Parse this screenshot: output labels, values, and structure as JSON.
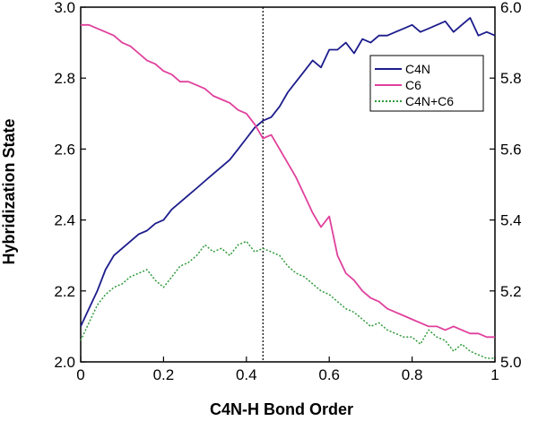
{
  "chart_data": {
    "type": "line",
    "title": "",
    "xlabel": "C4N-H Bond Order",
    "ylabel": "Hybridization State",
    "xlim": [
      0,
      1
    ],
    "ylim": [
      2.0,
      3.0
    ],
    "y2lim": [
      5.0,
      6.0
    ],
    "xticks": [
      "0",
      "0.2",
      "0.4",
      "0.6",
      "0.8",
      "1"
    ],
    "yticks": [
      "2.0",
      "2.2",
      "2.4",
      "2.6",
      "2.8",
      "3.0"
    ],
    "y2ticks": [
      "5.0",
      "5.2",
      "5.4",
      "5.6",
      "5.8",
      "6.0"
    ],
    "reference_line_x": 0.44,
    "grid": false,
    "legend_position": "top-right",
    "series": [
      {
        "name": "C4N",
        "axis": "left",
        "color": "#1c1c8c",
        "style": "solid",
        "x": [
          0.0,
          0.02,
          0.04,
          0.06,
          0.08,
          0.1,
          0.12,
          0.14,
          0.16,
          0.18,
          0.2,
          0.22,
          0.24,
          0.26,
          0.28,
          0.3,
          0.32,
          0.34,
          0.36,
          0.38,
          0.4,
          0.42,
          0.44,
          0.46,
          0.48,
          0.5,
          0.52,
          0.54,
          0.56,
          0.58,
          0.6,
          0.62,
          0.64,
          0.66,
          0.68,
          0.7,
          0.72,
          0.74,
          0.76,
          0.78,
          0.8,
          0.82,
          0.84,
          0.86,
          0.88,
          0.9,
          0.92,
          0.94,
          0.96,
          0.98,
          1.0
        ],
        "y": [
          2.1,
          2.15,
          2.2,
          2.26,
          2.3,
          2.32,
          2.34,
          2.36,
          2.37,
          2.39,
          2.4,
          2.43,
          2.45,
          2.47,
          2.49,
          2.51,
          2.53,
          2.55,
          2.57,
          2.6,
          2.63,
          2.66,
          2.68,
          2.69,
          2.72,
          2.76,
          2.79,
          2.82,
          2.85,
          2.83,
          2.88,
          2.88,
          2.9,
          2.87,
          2.91,
          2.9,
          2.92,
          2.92,
          2.93,
          2.94,
          2.95,
          2.93,
          2.94,
          2.95,
          2.96,
          2.93,
          2.95,
          2.97,
          2.92,
          2.93,
          2.92
        ]
      },
      {
        "name": "C6",
        "axis": "left",
        "color": "#e0409c",
        "style": "solid",
        "x": [
          0.0,
          0.02,
          0.04,
          0.06,
          0.08,
          0.1,
          0.12,
          0.14,
          0.16,
          0.18,
          0.2,
          0.22,
          0.24,
          0.26,
          0.28,
          0.3,
          0.32,
          0.34,
          0.36,
          0.38,
          0.4,
          0.42,
          0.44,
          0.46,
          0.48,
          0.5,
          0.52,
          0.54,
          0.56,
          0.58,
          0.6,
          0.62,
          0.64,
          0.66,
          0.68,
          0.7,
          0.72,
          0.74,
          0.76,
          0.78,
          0.8,
          0.82,
          0.84,
          0.86,
          0.88,
          0.9,
          0.92,
          0.94,
          0.96,
          0.98,
          1.0
        ],
        "y": [
          2.95,
          2.95,
          2.94,
          2.93,
          2.92,
          2.9,
          2.89,
          2.87,
          2.85,
          2.84,
          2.82,
          2.81,
          2.79,
          2.79,
          2.78,
          2.77,
          2.75,
          2.74,
          2.73,
          2.71,
          2.7,
          2.67,
          2.63,
          2.64,
          2.6,
          2.56,
          2.52,
          2.47,
          2.42,
          2.38,
          2.41,
          2.3,
          2.25,
          2.23,
          2.2,
          2.18,
          2.17,
          2.15,
          2.14,
          2.13,
          2.12,
          2.11,
          2.1,
          2.1,
          2.09,
          2.1,
          2.09,
          2.08,
          2.08,
          2.07,
          2.07
        ]
      },
      {
        "name": "C4N+C6",
        "axis": "right",
        "color": "#2f9a3a",
        "style": "dotted",
        "x": [
          0.0,
          0.02,
          0.04,
          0.06,
          0.08,
          0.1,
          0.12,
          0.14,
          0.16,
          0.18,
          0.2,
          0.22,
          0.24,
          0.26,
          0.28,
          0.3,
          0.32,
          0.34,
          0.36,
          0.38,
          0.4,
          0.42,
          0.44,
          0.46,
          0.48,
          0.5,
          0.52,
          0.54,
          0.56,
          0.58,
          0.6,
          0.62,
          0.64,
          0.66,
          0.68,
          0.7,
          0.72,
          0.74,
          0.76,
          0.78,
          0.8,
          0.82,
          0.84,
          0.86,
          0.88,
          0.9,
          0.92,
          0.94,
          0.96,
          0.98,
          1.0
        ],
        "y": [
          5.06,
          5.11,
          5.16,
          5.19,
          5.21,
          5.22,
          5.24,
          5.25,
          5.26,
          5.23,
          5.21,
          5.24,
          5.27,
          5.28,
          5.3,
          5.33,
          5.31,
          5.32,
          5.3,
          5.33,
          5.34,
          5.31,
          5.32,
          5.31,
          5.3,
          5.27,
          5.25,
          5.24,
          5.22,
          5.2,
          5.19,
          5.17,
          5.15,
          5.14,
          5.12,
          5.1,
          5.11,
          5.09,
          5.08,
          5.07,
          5.07,
          5.05,
          5.09,
          5.07,
          5.06,
          5.03,
          5.05,
          5.03,
          5.02,
          5.01,
          5.01
        ]
      }
    ]
  }
}
